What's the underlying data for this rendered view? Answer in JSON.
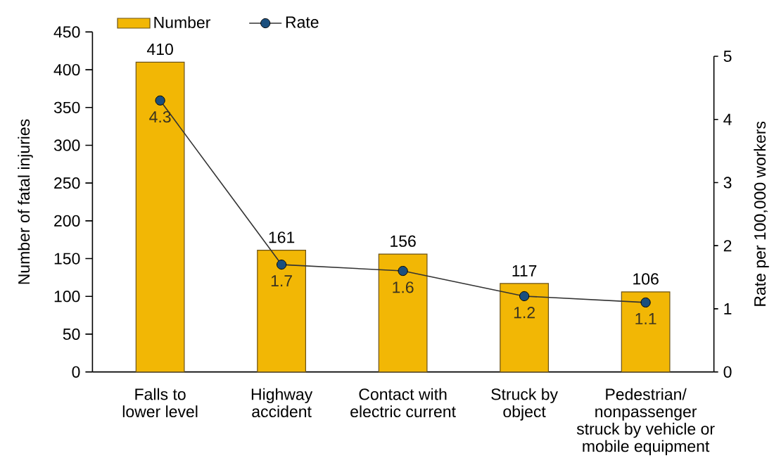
{
  "chart_data": {
    "type": "bar",
    "categories": [
      "Falls to lower level",
      "Highway accident",
      "Contact with electric current",
      "Struck by object",
      "Pedestrian/ nonpassenger struck by vehicle or mobile equipment"
    ],
    "series": [
      {
        "name": "Number",
        "color": "#f2b705",
        "values": [
          410,
          161,
          156,
          117,
          106
        ]
      },
      {
        "name": "Rate",
        "type": "line",
        "axis": "y2",
        "color": "#1b4f7e",
        "values": [
          4.3,
          1.7,
          1.6,
          1.2,
          1.1
        ]
      }
    ],
    "ylabel": "Number of fatal injuries",
    "y2label": "Rate per 100,000 workers",
    "ylim": [
      0,
      450
    ],
    "yticks": [
      0,
      50,
      100,
      150,
      200,
      250,
      300,
      350,
      400,
      450
    ],
    "y2lim": [
      0,
      5
    ],
    "y2ticks": [
      0,
      1,
      2,
      3,
      4,
      5
    ],
    "marker": "circle",
    "line_style": "solid",
    "data_labels": true,
    "legend": "top left"
  }
}
